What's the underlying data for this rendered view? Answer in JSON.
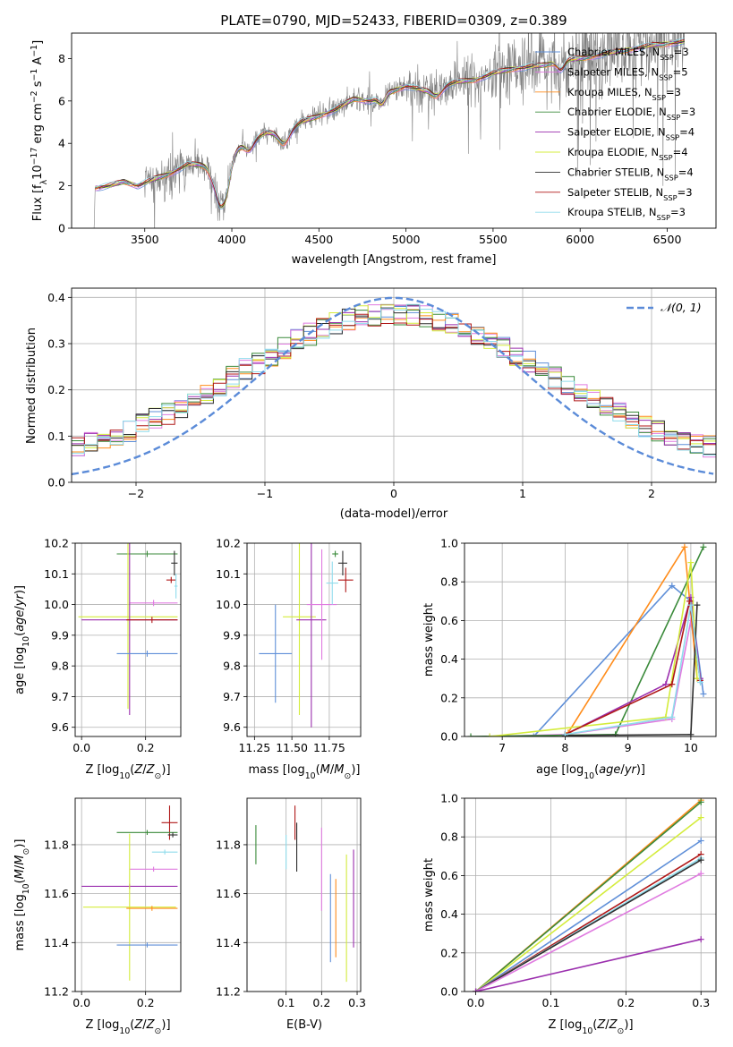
{
  "figure_title": "PLATE=0790, MJD=52433, FIBERID=0309, z=0.389",
  "colors": {
    "Chabrier MILES": "#5f8fd8",
    "Salpeter MILES": "#e07be0",
    "Kroupa MILES": "#ff8c1a",
    "Chabrier ELODIE": "#3a8a3a",
    "Salpeter ELODIE": "#9b2fae",
    "Kroupa ELODIE": "#d4ec3c",
    "Chabrier STELIB": "#2f2f2f",
    "Salpeter STELIB": "#b01818",
    "Kroupa STELIB": "#8fdcec",
    "data": "#808080",
    "gauss": "#5b8bd8"
  },
  "chart_data": [
    {
      "id": "spectrum",
      "type": "line",
      "title": "PLATE=0790, MJD=52433, FIBERID=0309, z=0.389",
      "xlabel": "wavelength [Angstrom, rest frame]",
      "ylabel": "Flux [f_λ 10^-17 erg cm^-2 s^-1 A^-1]",
      "xlim": [
        3080,
        6780
      ],
      "ylim": [
        0,
        9.2
      ],
      "xticks": [
        3500,
        4000,
        4500,
        5000,
        5500,
        6000,
        6500
      ],
      "yticks": [
        0,
        2,
        4,
        6,
        8
      ],
      "legend": [
        {
          "base": "Chabrier MILES, N",
          "sub": "SSP",
          "tail": "=3",
          "model": "Chabrier MILES"
        },
        {
          "base": "Salpeter MILES, N",
          "sub": "SSP",
          "tail": "=5",
          "model": "Salpeter MILES"
        },
        {
          "base": "Kroupa MILES, N",
          "sub": "SSP",
          "tail": "=3",
          "model": "Kroupa MILES"
        },
        {
          "base": "Chabrier ELODIE, N",
          "sub": "SSP",
          "tail": "=3",
          "model": "Chabrier ELODIE"
        },
        {
          "base": "Salpeter ELODIE, N",
          "sub": "SSP",
          "tail": "=4",
          "model": "Salpeter ELODIE"
        },
        {
          "base": "Kroupa ELODIE, N",
          "sub": "SSP",
          "tail": "=4",
          "model": "Kroupa ELODIE"
        },
        {
          "base": "Chabrier STELIB, N",
          "sub": "SSP",
          "tail": "=4",
          "model": "Chabrier STELIB"
        },
        {
          "base": "Salpeter STELIB, N",
          "sub": "SSP",
          "tail": "=3",
          "model": "Salpeter STELIB"
        },
        {
          "base": "Kroupa STELIB, N",
          "sub": "SSP",
          "tail": "=3",
          "model": "Kroupa STELIB"
        }
      ],
      "continuum_nodes": [
        [
          3200,
          0
        ],
        [
          3210,
          0
        ],
        [
          3215,
          1.9
        ],
        [
          3300,
          2.0
        ],
        [
          3380,
          2.2
        ],
        [
          3460,
          2.0
        ],
        [
          3550,
          2.3
        ],
        [
          3650,
          2.6
        ],
        [
          3750,
          3.0
        ],
        [
          3850,
          3.0
        ],
        [
          3930,
          2.7
        ],
        [
          4000,
          3.7
        ],
        [
          4100,
          4.1
        ],
        [
          4200,
          4.5
        ],
        [
          4300,
          4.5
        ],
        [
          4400,
          5.0
        ],
        [
          4500,
          5.3
        ],
        [
          4600,
          5.6
        ],
        [
          4700,
          6.1
        ],
        [
          4800,
          6.0
        ],
        [
          4900,
          6.4
        ],
        [
          5000,
          6.7
        ],
        [
          5100,
          6.5
        ],
        [
          5200,
          6.7
        ],
        [
          5300,
          6.9
        ],
        [
          5400,
          7.0
        ],
        [
          5500,
          7.3
        ],
        [
          5600,
          7.5
        ],
        [
          5700,
          7.6
        ],
        [
          5800,
          7.7
        ],
        [
          5900,
          7.9
        ],
        [
          6000,
          8.0
        ],
        [
          6200,
          8.3
        ],
        [
          6400,
          8.6
        ],
        [
          6600,
          8.8
        ]
      ],
      "noise_regions": [
        [
          3500,
          3750,
          0.9
        ],
        [
          3750,
          4000,
          0.7
        ],
        [
          4000,
          4500,
          0.4
        ],
        [
          4500,
          5000,
          0.5
        ],
        [
          5000,
          5500,
          1.0
        ],
        [
          5500,
          6000,
          1.5
        ],
        [
          6000,
          6600,
          1.8
        ]
      ]
    },
    {
      "id": "residuals",
      "type": "line",
      "xlabel": "(data-model)/error",
      "ylabel": "Normed distribution",
      "xlim": [
        -2.5,
        2.5
      ],
      "ylim": [
        0,
        0.42
      ],
      "xticks": [
        -2,
        -1,
        0,
        1,
        2
      ],
      "yticks": [
        0.0,
        0.1,
        0.2,
        0.3,
        0.4
      ],
      "legend_label": "N(0,1)",
      "bin_width": 0.1
    },
    {
      "id": "age_vs_Z",
      "type": "scatter",
      "xlabel": "Z [log10(Z/Z_sun)]",
      "ylabel": "age [log10(age/yr)]",
      "xlim": [
        -0.02,
        0.31
      ],
      "ylim": [
        9.57,
        10.2
      ],
      "xticks": [
        0.0,
        0.2
      ],
      "yticks": [
        9.6,
        9.7,
        9.8,
        9.9,
        10.0,
        10.1,
        10.2
      ],
      "points": [
        {
          "model": "Chabrier ELODIE",
          "x": 0.205,
          "xerr": 0.095,
          "y": 10.165,
          "yerr": 0.01
        },
        {
          "model": "Chabrier STELIB",
          "x": 0.29,
          "xerr": 0.01,
          "y": 10.135,
          "yerr": 0.04
        },
        {
          "model": "Salpeter STELIB",
          "x": 0.28,
          "xerr": 0.015,
          "y": 10.08,
          "yerr": 0.01
        },
        {
          "model": "Salpeter MILES",
          "x": 0.225,
          "xerr": 0.075,
          "y": 10.005,
          "yerr": 0.01
        },
        {
          "model": "Kroupa ELODIE",
          "x": 0.145,
          "xerr": 0.155,
          "y": 9.96,
          "yerr": 0.3
        },
        {
          "model": "Salpeter ELODIE",
          "x": 0.15,
          "xerr": 0.15,
          "y": 9.95,
          "yerr": 0.31
        },
        {
          "model": "Salpeter STELIB",
          "x": 0.22,
          "xerr": 0.08,
          "y": 9.95,
          "yerr": 0.01
        },
        {
          "model": "Chabrier MILES",
          "x": 0.205,
          "xerr": 0.095,
          "y": 9.84,
          "yerr": 0.01
        },
        {
          "model": "Kroupa STELIB",
          "x": 0.295,
          "xerr": 0.005,
          "y": 10.06,
          "yerr": 0.04
        }
      ]
    },
    {
      "id": "age_vs_mass",
      "type": "scatter",
      "xlabel": "mass [log10(M/M_sun)]",
      "ylabel": "",
      "xlim": [
        11.2,
        11.96
      ],
      "ylim": [
        9.57,
        10.2
      ],
      "xticks": [
        11.25,
        11.5,
        11.75
      ],
      "yticks": [
        9.6,
        9.7,
        9.8,
        9.9,
        10.0,
        10.1,
        10.2
      ],
      "points": [
        {
          "model": "Chabrier MILES",
          "x": 11.39,
          "xerr": 0.11,
          "y": 9.84,
          "yerr": 0.16
        },
        {
          "model": "Kroupa ELODIE",
          "x": 11.55,
          "xerr": 0.11,
          "y": 9.96,
          "yerr": 0.32
        },
        {
          "model": "Salpeter ELODIE",
          "x": 11.63,
          "xerr": 0.1,
          "y": 9.95,
          "yerr": 0.35
        },
        {
          "model": "Salpeter MILES",
          "x": 11.7,
          "xerr": 0.1,
          "y": 10.0,
          "yerr": 0.18
        },
        {
          "model": "Kroupa STELIB",
          "x": 11.77,
          "xerr": 0.04,
          "y": 10.07,
          "yerr": 0.07
        },
        {
          "model": "Chabrier ELODIE",
          "x": 11.79,
          "xerr": 0.02,
          "y": 10.165,
          "yerr": 0.01
        },
        {
          "model": "Chabrier STELIB",
          "x": 11.84,
          "xerr": 0.03,
          "y": 10.135,
          "yerr": 0.04
        },
        {
          "model": "Salpeter STELIB",
          "x": 11.86,
          "xerr": 0.05,
          "y": 10.08,
          "yerr": 0.04
        }
      ]
    },
    {
      "id": "massweight_vs_age",
      "type": "line",
      "xlabel": "age [log10(age/yr)]",
      "ylabel": "mass weight",
      "xlim": [
        6.4,
        10.4
      ],
      "ylim": [
        0,
        1
      ],
      "xticks": [
        7,
        8,
        9,
        10
      ],
      "yticks": [
        0.0,
        0.2,
        0.4,
        0.6,
        0.8,
        1.0
      ],
      "series": [
        {
          "model": "Chabrier MILES",
          "points": [
            [
              7.5,
              0
            ],
            [
              9.7,
              0.78
            ],
            [
              10.0,
              0.7
            ],
            [
              10.2,
              0.22
            ]
          ]
        },
        {
          "model": "Salpeter MILES",
          "points": [
            [
              6.8,
              0
            ],
            [
              8.0,
              0.01
            ],
            [
              9.7,
              0.09
            ],
            [
              10.0,
              0.6
            ],
            [
              10.15,
              0.29
            ]
          ]
        },
        {
          "model": "Kroupa MILES",
          "points": [
            [
              8.05,
              0.02
            ],
            [
              9.9,
              0.98
            ],
            [
              10.1,
              0.3
            ]
          ]
        },
        {
          "model": "Chabrier ELODIE",
          "points": [
            [
              6.5,
              0
            ],
            [
              8.8,
              0.01
            ],
            [
              10.2,
              0.98
            ]
          ]
        },
        {
          "model": "Salpeter ELODIE",
          "points": [
            [
              8.0,
              0.01
            ],
            [
              9.6,
              0.27
            ],
            [
              10.0,
              0.72
            ],
            [
              10.15,
              0.3
            ]
          ]
        },
        {
          "model": "Kroupa ELODIE",
          "points": [
            [
              6.8,
              0
            ],
            [
              9.6,
              0.1
            ],
            [
              10.0,
              0.9
            ],
            [
              10.1,
              0.3
            ]
          ]
        },
        {
          "model": "Chabrier STELIB",
          "points": [
            [
              8.0,
              0.005
            ],
            [
              10.0,
              0.01
            ],
            [
              10.1,
              0.68
            ]
          ]
        },
        {
          "model": "Salpeter STELIB",
          "points": [
            [
              8.0,
              0.01
            ],
            [
              9.7,
              0.27
            ],
            [
              9.98,
              0.7
            ],
            [
              10.15,
              0.29
            ]
          ]
        },
        {
          "model": "Kroupa STELIB",
          "points": [
            [
              8.0,
              0.01
            ],
            [
              9.7,
              0.1
            ],
            [
              10.0,
              0.68
            ],
            [
              10.15,
              0.28
            ]
          ]
        }
      ]
    },
    {
      "id": "mass_vs_Z",
      "type": "scatter",
      "xlabel": "Z [log10(Z/Z_sun)]",
      "ylabel": "mass [log10(M/M_sun)]",
      "xlim": [
        -0.02,
        0.31
      ],
      "ylim": [
        11.2,
        11.99
      ],
      "xticks": [
        0.0,
        0.2
      ],
      "yticks": [
        11.2,
        11.4,
        11.6,
        11.8
      ],
      "points": [
        {
          "model": "Salpeter STELIB",
          "x": 0.275,
          "xerr": 0.025,
          "y": 11.89,
          "yerr": 0.07
        },
        {
          "model": "Chabrier ELODIE",
          "x": 0.205,
          "xerr": 0.095,
          "y": 11.85,
          "yerr": 0.01
        },
        {
          "model": "Chabrier STELIB",
          "x": 0.285,
          "xerr": 0.015,
          "y": 11.84,
          "yerr": 0.01
        },
        {
          "model": "Kroupa STELIB",
          "x": 0.26,
          "xerr": 0.04,
          "y": 11.77,
          "yerr": 0.01
        },
        {
          "model": "Salpeter MILES",
          "x": 0.225,
          "xerr": 0.075,
          "y": 11.7,
          "yerr": 0.01
        },
        {
          "model": "Salpeter ELODIE",
          "x": 0.15,
          "xerr": 0.15,
          "y": 11.63,
          "yerr": 0.01
        },
        {
          "model": "Kroupa ELODIE",
          "x": 0.15,
          "xerr": 0.145,
          "y": 11.545,
          "yerr": 0.3
        },
        {
          "model": "Kroupa MILES",
          "x": 0.22,
          "xerr": 0.08,
          "y": 11.54,
          "yerr": 0.01
        },
        {
          "model": "Chabrier MILES",
          "x": 0.205,
          "xerr": 0.095,
          "y": 11.39,
          "yerr": 0.01
        }
      ]
    },
    {
      "id": "mass_vs_EBV",
      "type": "scatter",
      "xlabel": "E(B-V)",
      "ylabel": "",
      "xlim": [
        -0.01,
        0.31
      ],
      "ylim": [
        11.2,
        11.99
      ],
      "xticks": [
        0.1,
        0.2,
        0.3
      ],
      "yticks": [
        11.2,
        11.4,
        11.6,
        11.8
      ],
      "points": [
        {
          "model": "Chabrier ELODIE",
          "x": 0.015,
          "y": 11.8,
          "yerr": 0.08
        },
        {
          "model": "Kroupa STELIB",
          "x": 0.1,
          "y": 11.77,
          "yerr": 0.07
        },
        {
          "model": "Salpeter STELIB",
          "x": 0.125,
          "y": 11.89,
          "yerr": 0.07
        },
        {
          "model": "Chabrier STELIB",
          "x": 0.13,
          "y": 11.79,
          "yerr": 0.1
        },
        {
          "model": "Salpeter MILES",
          "x": 0.2,
          "y": 11.7,
          "yerr": 0.17
        },
        {
          "model": "Chabrier MILES",
          "x": 0.225,
          "y": 11.5,
          "yerr": 0.18
        },
        {
          "model": "Kroupa MILES",
          "x": 0.24,
          "y": 11.5,
          "yerr": 0.16
        },
        {
          "model": "Kroupa ELODIE",
          "x": 0.27,
          "y": 11.5,
          "yerr": 0.26
        },
        {
          "model": "Salpeter ELODIE",
          "x": 0.29,
          "y": 11.58,
          "yerr": 0.2
        }
      ]
    },
    {
      "id": "massweight_vs_Z",
      "type": "line",
      "xlabel": "Z [log10(Z/Z_sun)]",
      "ylabel": "mass weight",
      "xlim": [
        -0.015,
        0.32
      ],
      "ylim": [
        0,
        1
      ],
      "xticks": [
        0.0,
        0.1,
        0.2,
        0.3
      ],
      "yticks": [
        0.0,
        0.2,
        0.4,
        0.6,
        0.8,
        1.0
      ],
      "series": [
        {
          "model": "Kroupa MILES",
          "points": [
            [
              0,
              0
            ],
            [
              0.3,
              0.99
            ]
          ]
        },
        {
          "model": "Chabrier ELODIE",
          "points": [
            [
              0,
              0
            ],
            [
              0.3,
              0.98
            ]
          ]
        },
        {
          "model": "Kroupa ELODIE",
          "points": [
            [
              0,
              0
            ],
            [
              0.3,
              0.9
            ]
          ]
        },
        {
          "model": "Chabrier MILES",
          "points": [
            [
              0,
              0
            ],
            [
              0.3,
              0.78
            ]
          ]
        },
        {
          "model": "Salpeter STELIB",
          "points": [
            [
              0,
              0
            ],
            [
              0.3,
              0.71
            ]
          ]
        },
        {
          "model": "Kroupa STELIB",
          "points": [
            [
              0,
              0
            ],
            [
              0.3,
              0.69
            ]
          ]
        },
        {
          "model": "Chabrier STELIB",
          "points": [
            [
              0,
              0
            ],
            [
              0.3,
              0.68
            ]
          ]
        },
        {
          "model": "Salpeter MILES",
          "points": [
            [
              0,
              0
            ],
            [
              0.3,
              0.61
            ]
          ]
        },
        {
          "model": "Salpeter ELODIE",
          "points": [
            [
              0,
              0
            ],
            [
              0.3,
              0.27
            ]
          ]
        }
      ]
    }
  ]
}
